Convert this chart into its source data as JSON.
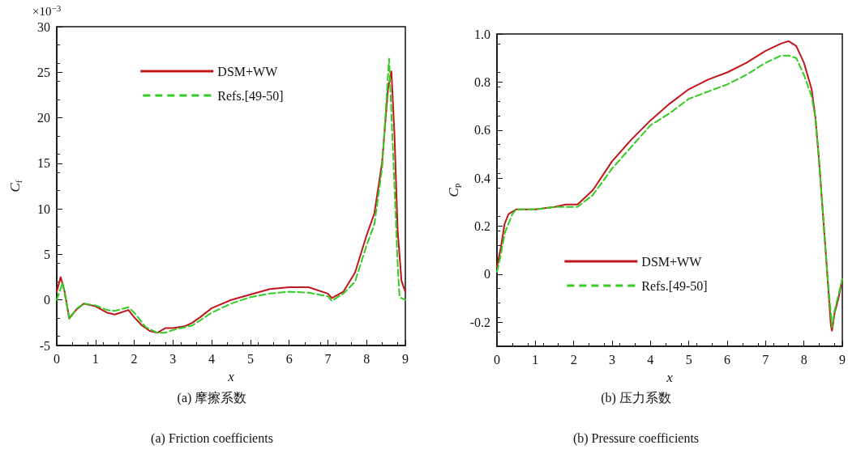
{
  "chart_data": [
    {
      "type": "line",
      "xlabel": "x",
      "ylabel": "C$_{f}$",
      "annotations": [
        "×10$^{−3}$",
        "(a) 摩擦系数",
        "(a) Friction coefficients"
      ],
      "xlim": [
        0,
        9
      ],
      "xticks": [
        0,
        1,
        2,
        3,
        4,
        5,
        6,
        7,
        8,
        9
      ],
      "ylim": [
        -5,
        30
      ],
      "yticks": [
        -5,
        0,
        5,
        10,
        15,
        20,
        25,
        30
      ],
      "grid": false,
      "legend": "top",
      "marker": "none",
      "series": [
        {
          "name": "DSM+WW",
          "color": "#c0161c",
          "line_style": "solid",
          "x": [
            0,
            0.1,
            0.2,
            0.32,
            0.5,
            0.7,
            1.0,
            1.3,
            1.5,
            1.85,
            2.0,
            2.2,
            2.4,
            2.6,
            2.8,
            3.0,
            3.3,
            3.5,
            3.7,
            4.0,
            4.5,
            5.0,
            5.5,
            6.0,
            6.5,
            7.0,
            7.1,
            7.4,
            7.7,
            8.0,
            8.2,
            8.4,
            8.55,
            8.64,
            8.72,
            8.8,
            8.9,
            9.0
          ],
          "values": [
            0.9,
            2.5,
            1.0,
            -2.0,
            -1.1,
            -0.4,
            -0.7,
            -1.4,
            -1.6,
            -1.1,
            -1.9,
            -2.8,
            -3.4,
            -3.6,
            -3.1,
            -3.1,
            -2.9,
            -2.5,
            -1.9,
            -0.9,
            0,
            0.6,
            1.2,
            1.4,
            1.4,
            0.7,
            0.2,
            0.9,
            3.0,
            7.1,
            9.5,
            15.1,
            23.1,
            25.1,
            18.1,
            7.7,
            2.1,
            0.9
          ]
        },
        {
          "name": "Refs.[49-50]",
          "color": "#33cc22",
          "line_style": "dashed",
          "x": [
            0,
            0.15,
            0.33,
            0.5,
            0.7,
            1.0,
            1.3,
            1.5,
            1.85,
            2.0,
            2.3,
            2.6,
            2.8,
            3.0,
            3.5,
            4.0,
            4.5,
            5.0,
            5.5,
            6.0,
            6.5,
            7.0,
            7.1,
            7.4,
            7.7,
            8.0,
            8.2,
            8.4,
            8.58,
            8.7,
            8.8,
            8.85,
            9.0
          ],
          "values": [
            0,
            1.9,
            -2.1,
            -1.0,
            -0.4,
            -0.6,
            -1.1,
            -1.2,
            -0.8,
            -1.4,
            -3.0,
            -3.6,
            -3.6,
            -3.3,
            -2.8,
            -1.4,
            -0.4,
            0.3,
            0.7,
            0.9,
            0.8,
            0.4,
            -0.1,
            0.7,
            2.0,
            6.0,
            8.3,
            14.5,
            26.5,
            14.5,
            4.0,
            0.3,
            0
          ]
        }
      ]
    },
    {
      "type": "line",
      "xlabel": "x",
      "ylabel": "C$_{p}$",
      "annotations": [
        "(b) 压力系数",
        "(b) Pressure coefficients"
      ],
      "xlim": [
        0,
        9
      ],
      "xticks": [
        0,
        1,
        2,
        3,
        4,
        5,
        6,
        7,
        8,
        9
      ],
      "ylim": [
        -0.3,
        1.0
      ],
      "yticks": [
        -0.2,
        0,
        0.2,
        0.4,
        0.6,
        0.8,
        {
          "value": 1.0,
          "label": "1.0"
        }
      ],
      "grid": false,
      "legend": "bottom",
      "marker": "none",
      "series": [
        {
          "name": "DSM+WW",
          "color": "#c0161c",
          "line_style": "solid",
          "x": [
            0,
            0.1,
            0.2,
            0.3,
            0.5,
            1.0,
            1.5,
            1.8,
            2.1,
            2.5,
            3.0,
            3.5,
            4.0,
            4.5,
            5.0,
            5.5,
            6.0,
            6.5,
            7.0,
            7.4,
            7.6,
            7.8,
            8.0,
            8.2,
            8.3,
            8.4,
            8.5,
            8.6,
            8.7,
            8.73,
            8.8,
            8.9,
            9.0
          ],
          "values": [
            0.03,
            0.11,
            0.21,
            0.25,
            0.27,
            0.27,
            0.28,
            0.29,
            0.29,
            0.35,
            0.47,
            0.56,
            0.64,
            0.71,
            0.77,
            0.81,
            0.84,
            0.88,
            0.93,
            0.96,
            0.97,
            0.95,
            0.88,
            0.77,
            0.65,
            0.46,
            0.24,
            0.02,
            -0.21,
            -0.235,
            -0.16,
            -0.1,
            -0.02
          ]
        },
        {
          "name": "Refs.[49-50]",
          "color": "#33cc22",
          "line_style": "dashed",
          "x": [
            0,
            0.1,
            0.2,
            0.4,
            0.5,
            1.0,
            1.5,
            2.1,
            2.5,
            3.0,
            3.5,
            4.0,
            4.5,
            5.0,
            5.5,
            6.0,
            6.5,
            7.0,
            7.4,
            7.6,
            7.8,
            8.0,
            8.2,
            8.3,
            8.4,
            8.5,
            8.6,
            8.73,
            8.8,
            9.0
          ],
          "values": [
            0.01,
            0.08,
            0.17,
            0.25,
            0.27,
            0.27,
            0.28,
            0.28,
            0.33,
            0.44,
            0.53,
            0.62,
            0.67,
            0.73,
            0.76,
            0.79,
            0.83,
            0.88,
            0.91,
            0.91,
            0.9,
            0.83,
            0.74,
            0.65,
            0.46,
            0.24,
            0.02,
            -0.22,
            -0.15,
            -0.02
          ]
        }
      ]
    }
  ]
}
